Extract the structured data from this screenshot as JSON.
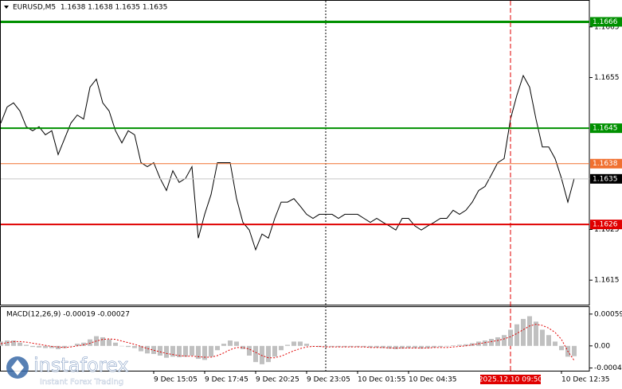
{
  "chart_data": [
    {
      "type": "line",
      "title": "EURUSD,M5  1.1638 1.1638 1.1635 1.1635",
      "color": "#000000",
      "categories": [
        null,
        null,
        null,
        null,
        null,
        null,
        null,
        null,
        null,
        null,
        null,
        null,
        null,
        null,
        null,
        null,
        null,
        null,
        null,
        null,
        null,
        null,
        null,
        null,
        "9 Dec 15:05",
        null,
        null,
        null,
        null,
        null,
        null,
        null,
        "9 Dec 17:45",
        null,
        null,
        null,
        null,
        null,
        null,
        null,
        "9 Dec 20:25",
        null,
        null,
        null,
        null,
        null,
        null,
        null,
        "9 Dec 23:05",
        null,
        null,
        null,
        null,
        null,
        null,
        null,
        "10 Dec 01:55",
        null,
        null,
        null,
        null,
        null,
        null,
        null,
        "10 Dec 04:35",
        null,
        null,
        null,
        null,
        null,
        null,
        null,
        null,
        null,
        null,
        null,
        null,
        null,
        null,
        null,
        "2025.12.10 09:50",
        null,
        null,
        null,
        null,
        null,
        null,
        null,
        "10 Dec 12:35",
        null,
        null
      ],
      "highlight_index": 80,
      "highlight_color": "#e00000",
      "values": [
        1.1646,
        1.16492,
        1.165,
        1.16484,
        1.16453,
        1.16445,
        1.16453,
        1.16437,
        1.16445,
        1.16398,
        1.16429,
        1.1646,
        1.16476,
        1.16468,
        1.16531,
        1.16547,
        1.165,
        1.16484,
        1.16445,
        1.16421,
        1.16445,
        1.16437,
        1.16382,
        1.16374,
        1.16382,
        1.16351,
        1.16327,
        1.16366,
        1.16343,
        1.16351,
        1.16374,
        1.16233,
        1.1628,
        1.16319,
        1.16382,
        1.16382,
        1.16382,
        1.16311,
        1.16264,
        1.16249,
        1.1621,
        1.16241,
        1.16233,
        1.16272,
        1.16304,
        1.16304,
        1.16311,
        1.16296,
        1.1628,
        1.16272,
        1.1628,
        1.1628,
        1.1628,
        1.16272,
        1.1628,
        1.1628,
        1.1628,
        1.16272,
        1.16264,
        1.16272,
        1.16264,
        1.16257,
        1.16249,
        1.16272,
        1.16272,
        1.16257,
        1.16249,
        1.16257,
        1.16264,
        1.16272,
        1.16272,
        1.16288,
        1.1628,
        1.16288,
        1.16304,
        1.16327,
        1.16335,
        1.16358,
        1.16382,
        1.1639,
        1.16468,
        1.16515,
        1.16554,
        1.16531,
        1.16468,
        1.16413,
        1.16413,
        1.1639,
        1.16351,
        1.16304,
        1.16351
      ],
      "ylim": [
        1.161,
        1.167
      ],
      "yticks": [
        1.1665,
        1.1655,
        1.1625,
        1.1615
      ],
      "levels": [
        {
          "value": 1.1666,
          "color": "#009000",
          "line_color": "#009000",
          "width": 3
        },
        {
          "value": 1.1645,
          "color": "#009000",
          "line_color": "#009000",
          "width": 2
        },
        {
          "value": 1.1638,
          "color": "#f07030",
          "line_color": "#f07030",
          "width": 1
        },
        {
          "value": 1.1635,
          "color": "#000000",
          "line_color": "#c8c8c8",
          "width": 1
        },
        {
          "value": 1.1626,
          "color": "#e00000",
          "line_color": "#e00000",
          "width": 2
        }
      ]
    },
    {
      "type": "macd",
      "title": "MACD(12,26,9) -0.00019 -0.00027",
      "ylim": [
        -0.00046,
        0.00072
      ],
      "yticks": [
        0.00059,
        {
          "value": 0,
          "label": "0.00"
        },
        -0.00041
      ],
      "series": [
        {
          "type": "bar",
          "color": "#c0c0c0",
          "values": [
            8e-05,
            0.0001,
            0.0001,
            6e-05,
            2e-05,
            -2e-05,
            -3e-05,
            -4e-05,
            -4e-05,
            -6e-05,
            -4e-05,
            0.0,
            4e-05,
            6e-05,
            0.00012,
            0.00018,
            0.00016,
            0.00012,
            6e-05,
            0.0,
            -2e-05,
            -4e-05,
            -0.0001,
            -0.00014,
            -0.00015,
            -0.00018,
            -0.00022,
            -0.0002,
            -0.00021,
            -0.0002,
            -0.00018,
            -0.00024,
            -0.00026,
            -0.0002,
            -8e-05,
            4e-05,
            0.0001,
            8e-05,
            -6e-05,
            -0.00018,
            -0.0003,
            -0.00034,
            -0.0003,
            -0.0002,
            -8e-05,
            2e-05,
            8e-05,
            8e-05,
            4e-05,
            0.0,
            -2e-05,
            -2e-05,
            -2e-05,
            -2e-05,
            -2e-05,
            -2e-05,
            -2e-05,
            -2e-05,
            -3e-05,
            -3e-05,
            -4e-05,
            -5e-05,
            -6e-05,
            -5e-05,
            -4e-05,
            -4e-05,
            -5e-05,
            -4e-05,
            -3e-05,
            -2e-05,
            -1e-05,
            1e-05,
            2e-05,
            3e-05,
            5e-05,
            8e-05,
            0.0001,
            0.00013,
            0.00016,
            0.0002,
            0.0003,
            0.0004,
            0.0005,
            0.00055,
            0.00045,
            0.0003,
            0.0002,
            8e-05,
            -8e-05,
            -0.0002,
            -0.00019
          ]
        },
        {
          "type": "line",
          "color": "#e00000",
          "values": [
            4e-05,
            6e-05,
            8e-05,
            8e-05,
            7e-05,
            5e-05,
            3e-05,
            1e-05,
            -1e-05,
            -2e-05,
            -3e-05,
            -2e-05,
            0.0,
            2e-05,
            5e-05,
            9e-05,
            0.00012,
            0.00013,
            0.00012,
            9e-05,
            6e-05,
            3e-05,
            -1e-05,
            -5e-05,
            -8e-05,
            -0.00011,
            -0.00014,
            -0.00016,
            -0.00018,
            -0.00019,
            -0.00019,
            -0.0002,
            -0.00021,
            -0.00021,
            -0.00018,
            -0.00013,
            -7e-05,
            -3e-05,
            -3e-05,
            -6e-05,
            -0.00012,
            -0.00018,
            -0.00022,
            -0.00022,
            -0.00019,
            -0.00014,
            -9e-05,
            -5e-05,
            -2e-05,
            -1e-05,
            -1e-05,
            -2e-05,
            -2e-05,
            -2e-05,
            -2e-05,
            -2e-05,
            -2e-05,
            -2e-05,
            -3e-05,
            -3e-05,
            -3e-05,
            -4e-05,
            -4e-05,
            -4e-05,
            -4e-05,
            -4e-05,
            -4e-05,
            -4e-05,
            -3e-05,
            -3e-05,
            -3e-05,
            -2e-05,
            -1e-05,
            0.0,
            2e-05,
            4e-05,
            6e-05,
            8e-05,
            0.0001,
            0.00013,
            0.00017,
            0.00023,
            0.0003,
            0.00037,
            0.0004,
            0.00038,
            0.00033,
            0.00025,
            0.00012,
            -0.0001,
            -0.00027
          ]
        }
      ]
    }
  ],
  "watermark": {
    "brand": "instaforex",
    "tagline": "Instant Forex Trading"
  }
}
